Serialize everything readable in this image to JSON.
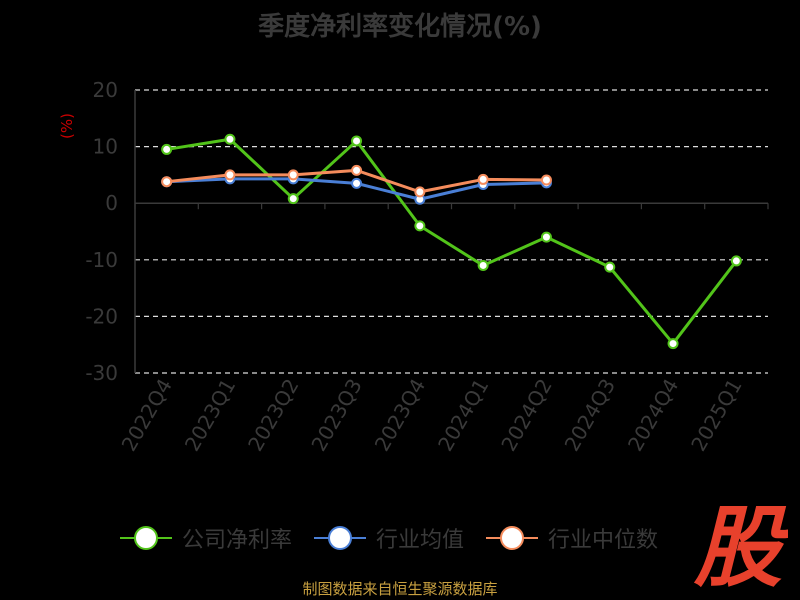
{
  "chart_data": {
    "type": "line",
    "title": "季度净利率变化情况(%)",
    "ylabel": "(%)",
    "xlabel": "",
    "categories": [
      "2022Q4",
      "2023Q1",
      "2023Q2",
      "2023Q3",
      "2023Q4",
      "2024Q1",
      "2024Q2",
      "2024Q3",
      "2024Q4",
      "2025Q1"
    ],
    "ylim": [
      -30,
      20
    ],
    "yticks": [
      20,
      10,
      0,
      -10,
      -20,
      -30
    ],
    "grid": "horizontal dashed",
    "legend_position": "bottom",
    "series": [
      {
        "name": "公司净利率",
        "color": "#52c41a",
        "values": [
          9.5,
          11.3,
          0.8,
          11,
          -4,
          -11,
          -6,
          -11.3,
          -24.8,
          -10.2
        ]
      },
      {
        "name": "行业均值",
        "color": "#4a7fd6",
        "values": [
          3.8,
          4.3,
          4.3,
          3.5,
          0.7,
          3.3,
          3.6,
          null,
          null,
          null
        ]
      },
      {
        "name": "行业中位数",
        "color": "#f58c5c",
        "values": [
          3.8,
          5,
          5,
          5.8,
          2,
          4.2,
          4.1,
          null,
          null,
          null
        ]
      }
    ]
  },
  "footer": {
    "source": "制图数据来自恒生聚源数据库"
  },
  "watermark": {
    "text": "股"
  }
}
